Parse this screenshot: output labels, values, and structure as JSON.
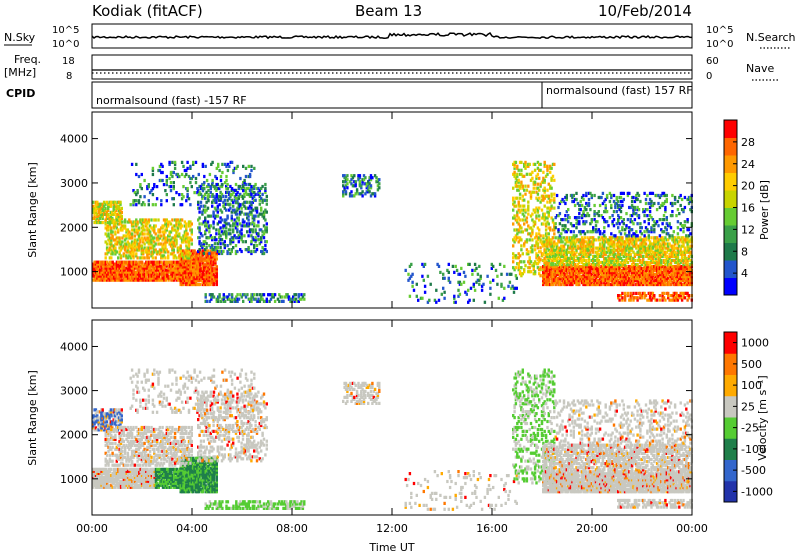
{
  "header": {
    "station": "Kodiak (fitACF)",
    "beam": "Beam 13",
    "date": "10/Feb/2014"
  },
  "aux_panels": {
    "nsky_label": "N.Sky",
    "nsearch_label": "N.Search",
    "nsky_ticks": [
      "10^5",
      "10^0"
    ],
    "nsearch_ticks": [
      "10^5",
      "10^0"
    ],
    "freq_label": "Freq.",
    "freq_unit": "[MHz]",
    "freq_ticks": [
      "18",
      "8"
    ],
    "nave_label": "Nave",
    "nave_ticks": [
      "60",
      "0"
    ],
    "cpid_label": "CPID",
    "cpid_segments": [
      {
        "label": "normalsound (fast) -157 RF",
        "start_hour": 0
      },
      {
        "label": "normalsound (fast) 157 RF",
        "start_hour": 18
      }
    ]
  },
  "chart_data": [
    {
      "type": "heatmap",
      "name": "power",
      "ylabel": "Slant Range [km]",
      "xlabel": "",
      "y_ticks": [
        1000,
        2000,
        3000,
        4000
      ],
      "ylim": [
        180,
        4600
      ],
      "xlim": [
        0,
        24
      ],
      "colorbar": {
        "label": "Power [dB]",
        "ticks": [
          4,
          8,
          12,
          16,
          20,
          24,
          28
        ],
        "range": [
          0,
          32
        ],
        "colors": [
          "#0000ff",
          "#2255cc",
          "#1e7a4a",
          "#3aa048",
          "#66cc33",
          "#c8d400",
          "#ffcc00",
          "#ff9900",
          "#ff6600",
          "#ff0000"
        ]
      }
    },
    {
      "type": "heatmap",
      "name": "velocity",
      "ylabel": "Slant Range [km]",
      "xlabel": "Time UT",
      "x_ticks": [
        "00:00",
        "04:00",
        "08:00",
        "12:00",
        "16:00",
        "20:00",
        "00:00"
      ],
      "y_ticks": [
        1000,
        2000,
        3000,
        4000
      ],
      "ylim": [
        180,
        4600
      ],
      "xlim": [
        0,
        24
      ],
      "colorbar": {
        "label": "Velocity [m s⁻¹]",
        "ticks": [
          "1000",
          "500",
          "100",
          "25",
          "-25",
          "-100",
          "-500",
          "-1000"
        ],
        "colors": [
          "#2233aa",
          "#3366cc",
          "#1f7f4a",
          "#55cc33",
          "#c8c8c0",
          "#ffaa00",
          "#ff7700",
          "#ff0000"
        ]
      }
    }
  ]
}
